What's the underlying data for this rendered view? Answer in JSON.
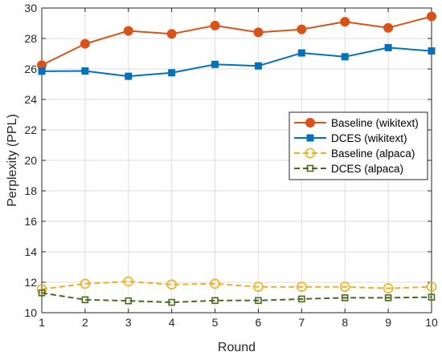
{
  "chart_data": {
    "type": "line",
    "title": "",
    "xlabel": "Round",
    "ylabel": "Perplexity (PPL)",
    "x": [
      1,
      2,
      3,
      4,
      5,
      6,
      7,
      8,
      9,
      10
    ],
    "xlim": [
      1,
      10
    ],
    "ylim": [
      10,
      30
    ],
    "yticks": [
      10,
      12,
      14,
      16,
      18,
      20,
      22,
      24,
      26,
      28,
      30
    ],
    "grid": true,
    "legend_position": "right",
    "series": [
      {
        "name": "Baseline (wikitext)",
        "values": [
          26.25,
          27.65,
          28.5,
          28.3,
          28.85,
          28.4,
          28.6,
          29.1,
          28.7,
          29.45
        ],
        "color": "#D95319",
        "marker": "circle-filled",
        "line": "solid"
      },
      {
        "name": "DCES (wikitext)",
        "values": [
          25.85,
          25.87,
          25.52,
          25.75,
          26.3,
          26.2,
          27.05,
          26.8,
          27.4,
          27.18
        ],
        "color": "#0072BD",
        "marker": "square-filled",
        "line": "solid"
      },
      {
        "name": "Baseline (alpaca)",
        "values": [
          11.55,
          11.9,
          12.05,
          11.85,
          11.9,
          11.7,
          11.7,
          11.7,
          11.6,
          11.7
        ],
        "color": "#EDB120",
        "marker": "circle-open",
        "line": "dashed"
      },
      {
        "name": "DCES (alpaca)",
        "values": [
          11.3,
          10.85,
          10.78,
          10.68,
          10.8,
          10.8,
          10.9,
          10.98,
          10.98,
          11.02
        ],
        "color": "#4A6B1F",
        "marker": "square-open",
        "line": "dashed"
      }
    ]
  }
}
